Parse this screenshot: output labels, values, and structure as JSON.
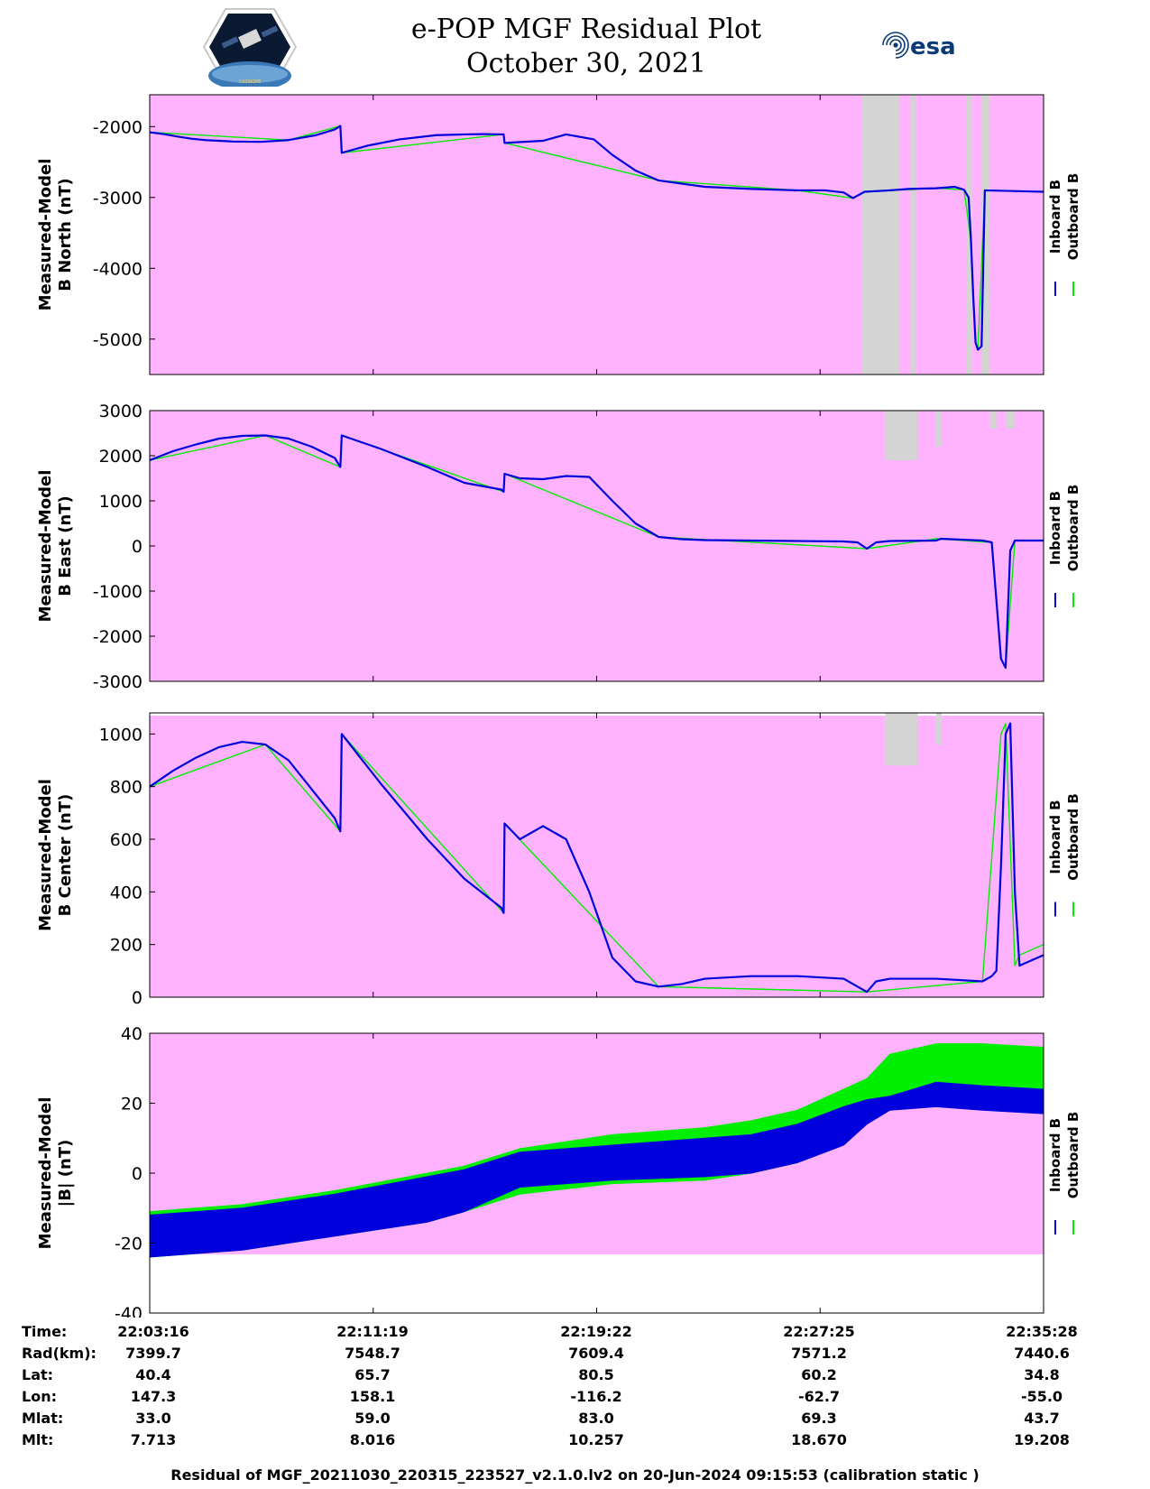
{
  "header": {
    "title_line1": "e-POP MGF Residual Plot",
    "title_line2": "October 30, 2021",
    "logo_left_text": "CASSIOPE",
    "logo_right_text": "esa"
  },
  "colors": {
    "plot_bg": "#ffb3ff",
    "gap": "#d4d4d4",
    "inboard": "#0000dd",
    "outboard": "#00ee00"
  },
  "chart_data": [
    {
      "type": "line",
      "ylabel": [
        "Measured-Model",
        "B North (nT)"
      ],
      "ylim": [
        -5500,
        -1550
      ],
      "yticks": [
        -2000,
        -3000,
        -4000,
        -5000
      ],
      "ytick_labels": [
        "-2000",
        "-3000",
        "-4000",
        "-5000"
      ],
      "xlim": [
        0,
        1932
      ],
      "legend": [
        "Inboard B",
        "Outboard B"
      ],
      "data_gaps": [
        [
          1540,
          1620,
          -5500,
          -1550
        ],
        [
          1645,
          1655,
          -5500,
          -1550
        ],
        [
          1765,
          1778,
          -5500,
          -1550
        ],
        [
          1798,
          1815,
          -5500,
          -1550
        ]
      ],
      "series": [
        {
          "name": "Inboard B",
          "x": [
            0,
            30,
            60,
            90,
            120,
            180,
            240,
            300,
            360,
            400,
            412,
            415,
            470,
            540,
            620,
            680,
            720,
            765,
            767,
            850,
            900,
            960,
            1000,
            1050,
            1100,
            1200,
            1300,
            1400,
            1460,
            1500,
            1520,
            1545,
            1600,
            1640,
            1700,
            1740,
            1760,
            1770,
            1775,
            1780,
            1785,
            1790,
            1798,
            1805,
            1932
          ],
          "y": [
            -2080,
            -2105,
            -2140,
            -2170,
            -2190,
            -2210,
            -2215,
            -2190,
            -2120,
            -2040,
            -1990,
            -2370,
            -2270,
            -2180,
            -2120,
            -2110,
            -2105,
            -2110,
            -2230,
            -2200,
            -2110,
            -2180,
            -2400,
            -2620,
            -2760,
            -2850,
            -2880,
            -2900,
            -2900,
            -2930,
            -3010,
            -2920,
            -2900,
            -2880,
            -2870,
            -2850,
            -2890,
            -3000,
            -3600,
            -4400,
            -5050,
            -5150,
            -5100,
            -2900,
            -2920
          ]
        },
        {
          "name": "Outboard B",
          "x": [
            0,
            300,
            412,
            415,
            765,
            767,
            1100,
            1400,
            1520,
            1545,
            1700,
            1760,
            1775,
            1785,
            1790,
            1805,
            1932
          ],
          "y": [
            -2080,
            -2190,
            -1990,
            -2370,
            -2110,
            -2230,
            -2760,
            -2900,
            -3010,
            -2920,
            -2870,
            -2890,
            -3600,
            -5050,
            -5150,
            -2900,
            -2920
          ]
        }
      ]
    },
    {
      "type": "line",
      "ylabel": [
        "Measured-Model",
        "B East (nT)"
      ],
      "ylim": [
        -3000,
        3000
      ],
      "yticks": [
        3000,
        2000,
        1000,
        0,
        -1000,
        -2000,
        -3000
      ],
      "ytick_labels": [
        "3000",
        "2000",
        "1000",
        "0",
        "-1000",
        "-2000",
        "-3000"
      ],
      "xlim": [
        0,
        1932
      ],
      "legend": [
        "Inboard B",
        "Outboard B"
      ],
      "data_gaps": [
        [
          1590,
          1660,
          1900,
          3000
        ],
        [
          1700,
          1712,
          2200,
          3000
        ],
        [
          1815,
          1830,
          2600,
          3000
        ],
        [
          1850,
          1870,
          2600,
          3000
        ]
      ],
      "series": [
        {
          "name": "Inboard B",
          "x": [
            0,
            50,
            100,
            150,
            200,
            250,
            300,
            350,
            400,
            412,
            415,
            500,
            600,
            680,
            760,
            765,
            767,
            800,
            850,
            900,
            950,
            1000,
            1050,
            1100,
            1150,
            1200,
            1300,
            1400,
            1500,
            1530,
            1550,
            1570,
            1600,
            1700,
            1710,
            1800,
            1820,
            1830,
            1840,
            1850,
            1860,
            1870,
            1932
          ],
          "y": [
            1900,
            2100,
            2250,
            2380,
            2440,
            2450,
            2380,
            2200,
            1950,
            1750,
            2450,
            2150,
            1750,
            1400,
            1250,
            1200,
            1600,
            1500,
            1480,
            1550,
            1530,
            1000,
            500,
            200,
            150,
            130,
            120,
            110,
            100,
            80,
            -60,
            80,
            110,
            120,
            160,
            120,
            80,
            -1200,
            -2500,
            -2700,
            -100,
            120,
            120
          ]
        },
        {
          "name": "Outboard B",
          "x": [
            0,
            250,
            412,
            415,
            765,
            767,
            1100,
            1550,
            1700,
            1820,
            1840,
            1850,
            1870,
            1932
          ],
          "y": [
            1900,
            2450,
            1750,
            2450,
            1200,
            1600,
            200,
            -60,
            160,
            80,
            -2500,
            -2700,
            120,
            120
          ]
        }
      ]
    },
    {
      "type": "line",
      "ylabel": [
        "Measured-Model",
        "B Center (nT)"
      ],
      "ylim": [
        0,
        1080
      ],
      "yticks": [
        1000,
        800,
        600,
        400,
        200,
        0
      ],
      "ytick_labels": [
        "1000",
        "800",
        "600",
        "400",
        "200",
        "0"
      ],
      "xlim": [
        0,
        1932
      ],
      "legend": [
        "Inboard B",
        "Outboard B"
      ],
      "data_gaps": [
        [
          1590,
          1660,
          880,
          1080
        ],
        [
          1700,
          1712,
          960,
          1080
        ]
      ],
      "series": [
        {
          "name": "Inboard B",
          "x": [
            0,
            50,
            100,
            150,
            200,
            250,
            300,
            350,
            400,
            412,
            415,
            500,
            600,
            680,
            760,
            765,
            767,
            800,
            850,
            900,
            950,
            1000,
            1050,
            1100,
            1150,
            1200,
            1300,
            1400,
            1500,
            1530,
            1550,
            1570,
            1600,
            1700,
            1800,
            1820,
            1830,
            1840,
            1850,
            1860,
            1870,
            1880,
            1932
          ],
          "y": [
            800,
            860,
            910,
            950,
            970,
            960,
            900,
            790,
            680,
            630,
            1000,
            810,
            600,
            450,
            340,
            320,
            660,
            600,
            650,
            600,
            400,
            150,
            60,
            40,
            50,
            70,
            80,
            80,
            70,
            40,
            20,
            60,
            70,
            70,
            60,
            80,
            100,
            500,
            1000,
            1040,
            400,
            120,
            160
          ]
        },
        {
          "name": "Outboard B",
          "x": [
            0,
            250,
            412,
            415,
            765,
            767,
            1100,
            1550,
            1800,
            1840,
            1850,
            1870,
            1880,
            1932
          ],
          "y": [
            800,
            960,
            630,
            1000,
            320,
            660,
            40,
            20,
            60,
            1000,
            1040,
            120,
            160,
            200
          ]
        }
      ]
    },
    {
      "type": "area",
      "ylabel": [
        "Measured-Model",
        "|B| (nT)"
      ],
      "ylim": [
        -40,
        40
      ],
      "yticks": [
        40,
        20,
        0,
        -20,
        -40
      ],
      "ytick_labels": [
        "40",
        "20",
        "0",
        "-20",
        "-40"
      ],
      "xlim": [
        0,
        1932
      ],
      "legend": [
        "Inboard B",
        "Outboard B"
      ],
      "data_gaps": [],
      "series": [
        {
          "name": "Outboard B",
          "x": [
            0,
            200,
            400,
            600,
            680,
            800,
            1000,
            1200,
            1300,
            1400,
            1500,
            1550,
            1600,
            1700,
            1800,
            1932
          ],
          "upper": [
            -11,
            -9,
            -5,
            0,
            2,
            7,
            11,
            13,
            15,
            18,
            24,
            27,
            34,
            37,
            37,
            36
          ],
          "lower": [
            -24,
            -22,
            -18,
            -14,
            -11,
            -6,
            -3,
            -2,
            0,
            3,
            9,
            14,
            21,
            23,
            22,
            21
          ]
        },
        {
          "name": "Inboard B",
          "x": [
            0,
            200,
            400,
            600,
            680,
            800,
            1000,
            1200,
            1300,
            1400,
            1500,
            1550,
            1600,
            1700,
            1800,
            1932
          ],
          "upper": [
            -12,
            -10,
            -6,
            -1,
            1,
            6,
            8,
            10,
            11,
            14,
            19,
            21,
            22,
            26,
            25,
            24
          ],
          "lower": [
            -24,
            -22,
            -18,
            -14,
            -11,
            -4,
            -2,
            -1,
            0,
            3,
            8,
            14,
            18,
            19,
            18,
            17
          ]
        }
      ]
    }
  ],
  "info_table": {
    "labels": [
      "Time:",
      "Rad(km):",
      "Lat:",
      "Lon:",
      "Mlat:",
      "Mlt:"
    ],
    "columns": [
      [
        "22:03:16",
        "7399.7",
        "40.4",
        "147.3",
        "33.0",
        "7.713"
      ],
      [
        "22:11:19",
        "7548.7",
        "65.7",
        "158.1",
        "59.0",
        "8.016"
      ],
      [
        "22:19:22",
        "7609.4",
        "80.5",
        "-116.2",
        "83.0",
        "10.257"
      ],
      [
        "22:27:25",
        "7571.2",
        "60.2",
        "-62.7",
        "69.3",
        "18.670"
      ],
      [
        "22:35:28",
        "7440.6",
        "34.8",
        "-55.0",
        "43.7",
        "19.208"
      ]
    ]
  },
  "footer": "Residual of MGF_20211030_220315_223527_v2.1.0.lv2 on 20-Jun-2024 09:15:53 (calibration static )"
}
